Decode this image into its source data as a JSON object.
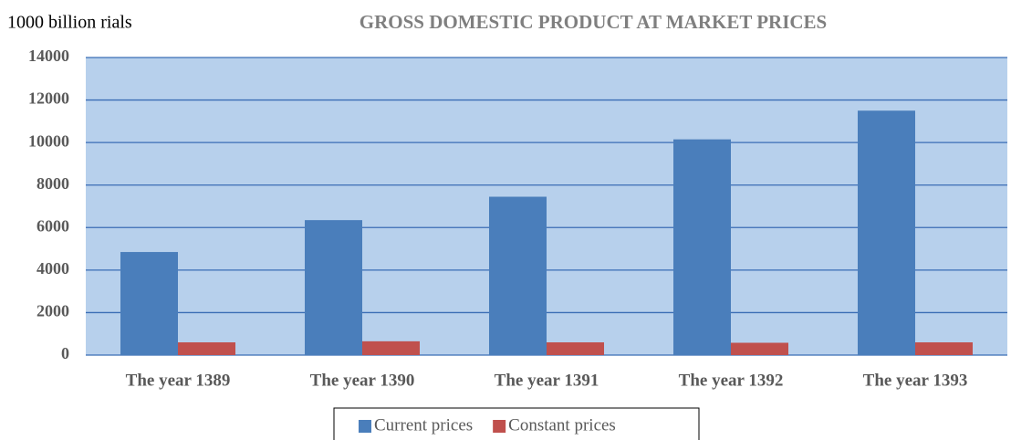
{
  "chart_data": {
    "type": "bar",
    "title": "GROSS DOMESTIC PRODUCT AT MARKET PRICES",
    "y_label": "1000 billion rials",
    "categories": [
      "The year 1389",
      "The year 1390",
      "The year 1391",
      "The year 1392",
      "The year 1393"
    ],
    "series": [
      {
        "name": "Current prices",
        "color": "#4a7ebb",
        "values": [
          4850,
          6350,
          7450,
          10150,
          11500
        ]
      },
      {
        "name": "Constant prices",
        "color": "#c0504d",
        "values": [
          600,
          650,
          600,
          580,
          600
        ]
      }
    ],
    "ylim": [
      0,
      14000
    ],
    "yticks": [
      0,
      2000,
      4000,
      6000,
      8000,
      10000,
      12000,
      14000
    ],
    "grid": true,
    "legend": "bottom",
    "background": "#b7d0ec"
  }
}
